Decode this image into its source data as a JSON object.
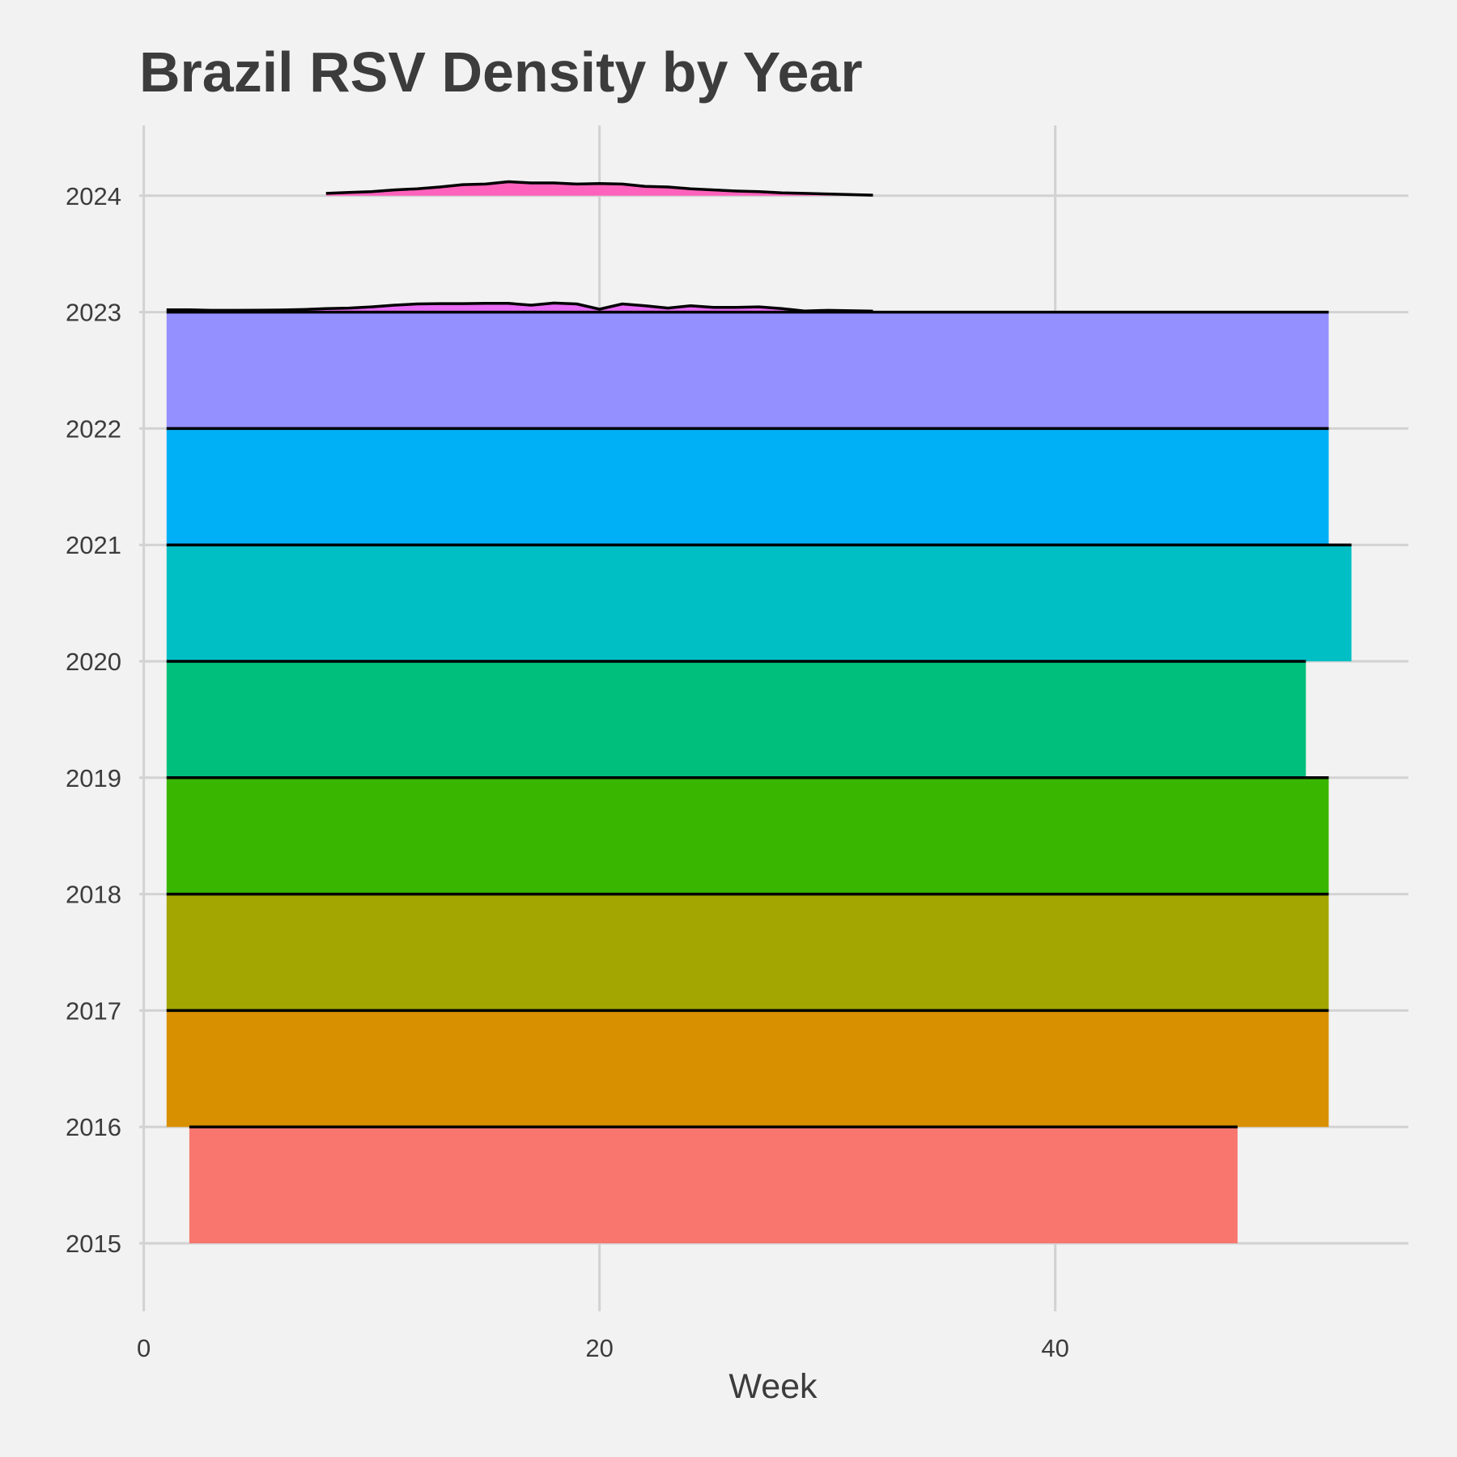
{
  "chart_data": {
    "type": "area",
    "title": "Brazil RSV Density by Year",
    "xlabel": "Week",
    "ylabel": "",
    "x_ticks": [
      0,
      20,
      40
    ],
    "xlim": [
      -0.2,
      55.5
    ],
    "y_categories": [
      "2015",
      "2016",
      "2017",
      "2018",
      "2019",
      "2020",
      "2021",
      "2022",
      "2023",
      "2024"
    ],
    "grid": true,
    "legend": "none",
    "series": [
      {
        "year": "2015",
        "color": "#F8766D",
        "x": [
          2,
          48
        ],
        "height": [
          1.0,
          1.0
        ]
      },
      {
        "year": "2016",
        "color": "#D89000",
        "x": [
          1,
          52
        ],
        "height": [
          1.0,
          1.0
        ]
      },
      {
        "year": "2017",
        "color": "#A3A500",
        "x": [
          1,
          52
        ],
        "height": [
          1.0,
          1.0
        ]
      },
      {
        "year": "2018",
        "color": "#39B600",
        "x": [
          1,
          52
        ],
        "height": [
          1.0,
          1.0
        ]
      },
      {
        "year": "2019",
        "color": "#00BF7D",
        "x": [
          1,
          51
        ],
        "height": [
          1.0,
          1.0
        ]
      },
      {
        "year": "2020",
        "color": "#00BFC4",
        "x": [
          1,
          53
        ],
        "height": [
          1.0,
          1.0
        ]
      },
      {
        "year": "2021",
        "color": "#00B0F6",
        "x": [
          1,
          52
        ],
        "height": [
          1.0,
          1.0
        ]
      },
      {
        "year": "2022",
        "color": "#9590FF",
        "x": [
          1,
          52
        ],
        "height": [
          1.0,
          1.0
        ]
      },
      {
        "year": "2023",
        "color": "#E76BF3",
        "x": [
          1,
          2,
          3,
          4,
          5,
          6,
          7,
          8,
          9,
          10,
          11,
          12,
          13,
          14,
          15,
          16,
          17,
          18,
          19,
          20,
          21,
          22,
          23,
          24,
          25,
          26,
          27,
          28,
          29,
          30,
          31,
          32
        ],
        "height": [
          0.02,
          0.02,
          0.015,
          0.015,
          0.016,
          0.018,
          0.022,
          0.03,
          0.035,
          0.045,
          0.06,
          0.07,
          0.073,
          0.073,
          0.075,
          0.075,
          0.06,
          0.078,
          0.07,
          0.025,
          0.07,
          0.055,
          0.035,
          0.055,
          0.04,
          0.04,
          0.045,
          0.03,
          0.01,
          0.015,
          0.012,
          0.008
        ]
      },
      {
        "year": "2024",
        "color": "#FF62BC",
        "x": [
          8,
          9,
          10,
          11,
          12,
          13,
          14,
          15,
          16,
          17,
          18,
          19,
          20,
          21,
          22,
          23,
          24,
          25,
          26,
          27,
          28,
          29,
          30,
          31,
          32
        ],
        "height": [
          0.02,
          0.028,
          0.035,
          0.05,
          0.06,
          0.075,
          0.095,
          0.1,
          0.12,
          0.11,
          0.11,
          0.1,
          0.105,
          0.1,
          0.08,
          0.075,
          0.06,
          0.05,
          0.04,
          0.035,
          0.025,
          0.02,
          0.015,
          0.01,
          0.005
        ]
      }
    ]
  }
}
